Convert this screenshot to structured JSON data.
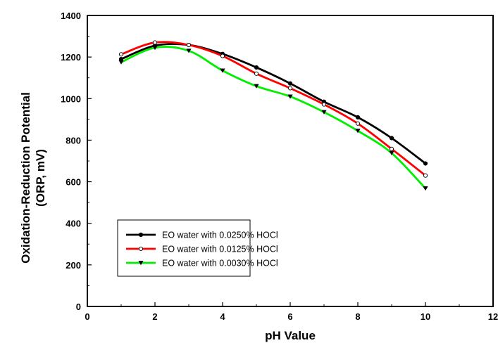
{
  "chart_data": {
    "type": "line",
    "xlabel": "pH Value",
    "ylabel_lines": [
      "Oxidation-Reduction Potential",
      "(ORP, mV)"
    ],
    "xlim": [
      0,
      12
    ],
    "ylim": [
      0,
      1400
    ],
    "xticks": [
      0,
      2,
      4,
      6,
      8,
      10,
      12
    ],
    "yticks": [
      0,
      200,
      400,
      600,
      800,
      1000,
      1200,
      1400
    ],
    "grid": false,
    "legend_position": "bottom-left",
    "series": [
      {
        "name": "EO water with 0.0250% HOCl",
        "color": "#000000",
        "marker": "filled-circle",
        "x": [
          1,
          2,
          3,
          4,
          5,
          6,
          7,
          8,
          9,
          10
        ],
        "y": [
          1190,
          1255,
          1258,
          1215,
          1150,
          1073,
          985,
          910,
          810,
          688
        ]
      },
      {
        "name": "EO water with 0.0125% HOCl",
        "color": "#ff0000",
        "marker": "open-circle",
        "x": [
          1,
          2,
          3,
          4,
          5,
          6,
          7,
          8,
          9,
          10
        ],
        "y": [
          1213,
          1270,
          1258,
          1205,
          1120,
          1050,
          972,
          880,
          758,
          630
        ]
      },
      {
        "name": "EO water with 0.0030% HOCl",
        "color": "#00ee00",
        "marker": "filled-triangle-down",
        "x": [
          1,
          2,
          3,
          4,
          5,
          6,
          7,
          8,
          9,
          10
        ],
        "y": [
          1175,
          1245,
          1230,
          1135,
          1060,
          1010,
          935,
          845,
          738,
          568
        ]
      }
    ]
  }
}
